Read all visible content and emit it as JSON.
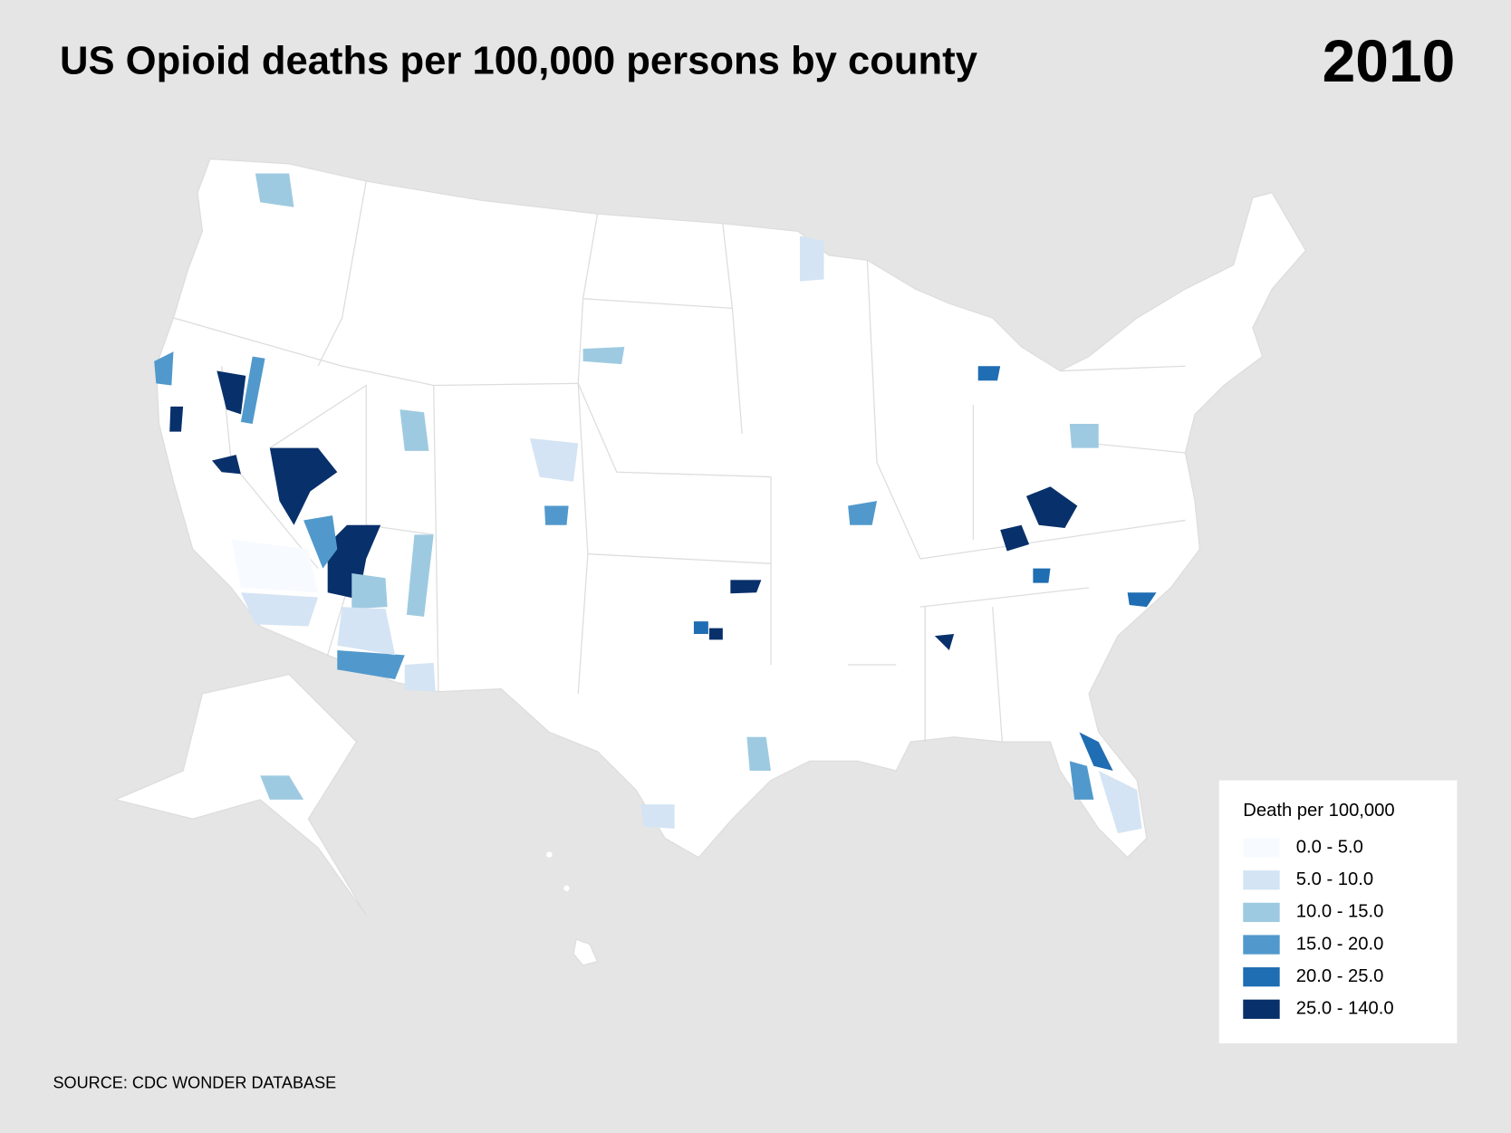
{
  "header": {
    "title": "US Opioid deaths per 100,000 persons by county",
    "year": "2010"
  },
  "legend": {
    "title": "Death per 100,000",
    "items": [
      {
        "label": "0.0 - 5.0",
        "color": "#f7fbff"
      },
      {
        "label": "5.0 - 10.0",
        "color": "#d4e4f4"
      },
      {
        "label": "10.0 - 15.0",
        "color": "#9ecae1"
      },
      {
        "label": "15.0 - 20.0",
        "color": "#5199cc"
      },
      {
        "label": "20.0 - 25.0",
        "color": "#1f6db3"
      },
      {
        "label": "25.0 - 140.0",
        "color": "#08306b"
      }
    ]
  },
  "source": "SOURCE: CDC WONDER DATABASE"
}
